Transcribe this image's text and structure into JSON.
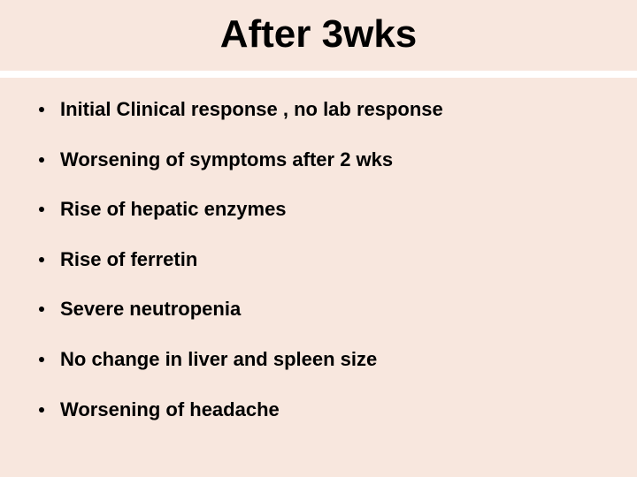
{
  "slide": {
    "title": "After 3wks",
    "background_color": "#f8e7de",
    "divider_color": "#ffffff",
    "title_font_family": "Arial Black",
    "title_font_size": 44,
    "title_color": "#000000",
    "body_font_family": "Arial",
    "body_font_size": 22,
    "body_font_weight": 700,
    "body_color": "#000000",
    "bullets": [
      "Initial Clinical response , no lab response",
      "Worsening of symptoms after 2 wks",
      "Rise of hepatic enzymes",
      "Rise of ferretin",
      "Severe neutropenia",
      "No change in liver and spleen size",
      "Worsening of headache"
    ]
  }
}
